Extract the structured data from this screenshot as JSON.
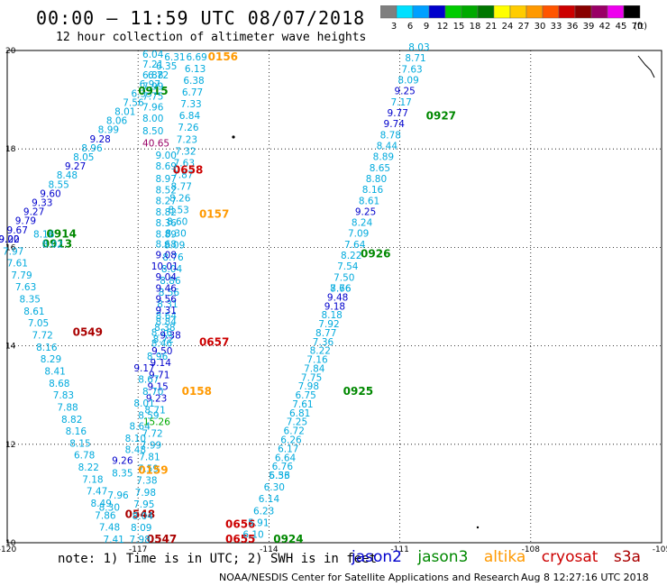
{
  "title": "00:00 — 11:59 UTC 08/07/2018",
  "subtitle": "12 hour collection of altimeter wave heights",
  "note": "note: 1) Time is in UTC; 2) SWH is in feet",
  "credit": "NOAA/NESDIS Center for Satellite Applications and Research",
  "timestamp": "Aug  8 12:27:16 UTC 2018",
  "colorbar": {
    "labels": [
      "3",
      "6",
      "9",
      "12",
      "15",
      "18",
      "21",
      "24",
      "27",
      "30",
      "33",
      "36",
      "39",
      "42",
      "45",
      "70"
    ],
    "unit": "(ft)",
    "colors": [
      "#7f7f7f",
      "#00e0ff",
      "#00a0ff",
      "#0000cc",
      "#00cc00",
      "#00aa00",
      "#007700",
      "#ffff00",
      "#ffcc00",
      "#ff9900",
      "#ff5500",
      "#cc0000",
      "#880000",
      "#990066",
      "#ee00ee",
      "#000000"
    ]
  },
  "legend": [
    {
      "name": "jason2",
      "color": "#0000cc"
    },
    {
      "name": "jason3",
      "color": "#008800"
    },
    {
      "name": "altika",
      "color": "#ff9900"
    },
    {
      "name": "cryosat",
      "color": "#cc0000"
    },
    {
      "name": "s3a",
      "color": "#aa0000"
    }
  ],
  "chart_data": {
    "type": "scatter",
    "xlim": [
      -120,
      -105
    ],
    "ylim": [
      10,
      20
    ],
    "x_ticks": [
      "-120",
      "-117",
      "-114",
      "-111",
      "-108",
      "-105"
    ],
    "y_ticks": [
      "10",
      "12",
      "14",
      "16",
      "18",
      "20"
    ],
    "grid": true,
    "tracks": [
      {
        "time": "0915",
        "satellite": "jason3",
        "color": "#008800",
        "label_pos": [
          -117.0,
          19.1
        ],
        "start": [
          -116.4,
          19.8
        ],
        "end": [
          -120.2,
          16.1
        ],
        "values": [
          "6.31",
          "6.35",
          "6.72",
          "6.97",
          "6.33",
          "7.56",
          "8.01",
          "8.06",
          "8.99",
          "9.28",
          "8.96",
          "8.05",
          "9.27",
          "8.48",
          "8.55",
          "9.60",
          "9.33",
          "9.27",
          "9.79",
          "9.67",
          "9.20"
        ]
      },
      {
        "time": "0914",
        "satellite": "jason3",
        "color": "#008800",
        "label_pos": [
          -119.1,
          16.2
        ],
        "values": []
      },
      {
        "time": "0913",
        "satellite": "jason3",
        "color": "#008800",
        "label_pos": [
          -119.2,
          16.0
        ],
        "values": []
      },
      {
        "time": "0549",
        "satellite": "s3a",
        "color": "#aa0000",
        "label_pos": [
          -118.5,
          14.2
        ],
        "start": [
          -120.2,
          16.1
        ],
        "end": [
          -117.8,
          10.0
        ],
        "values": [
          "9.02",
          "7.97",
          "7.61",
          "7.79",
          "7.63",
          "8.35",
          "8.61",
          "7.05",
          "7.72",
          "8.16",
          "8.29",
          "8.41",
          "8.68",
          "7.83",
          "7.88",
          "8.82",
          "8.16",
          "8.15",
          "6.78",
          "8.22",
          "7.18",
          "7.47",
          "8.49",
          "7.86",
          "7.48",
          "7.41"
        ]
      },
      {
        "time": "0548",
        "satellite": "s3a",
        "color": "#aa0000",
        "label_pos": [
          -117.3,
          10.5
        ],
        "values": []
      },
      {
        "time": "0547",
        "satellite": "s3a",
        "color": "#aa0000",
        "label_pos": [
          -116.8,
          10.0
        ],
        "values": []
      },
      {
        "time": "0156",
        "satellite": "altika",
        "color": "#ff9900",
        "label_pos": [
          -115.4,
          19.8
        ],
        "start": [
          -115.9,
          19.8
        ],
        "end": [
          -117.2,
          10.0
        ],
        "values": [
          "6.69",
          "6.13",
          "6.38",
          "6.77",
          "7.33",
          "6.84",
          "7.26",
          "7.23",
          "7.32",
          "7.63",
          "7.87",
          "8.77",
          "8.26",
          "8.53",
          "8.60",
          "8.30",
          "8.09",
          "8.76",
          "8.04",
          "8.86",
          "8.56",
          "8.31",
          "8.64",
          "8.38",
          "8.72",
          "9.50",
          "9.14",
          "9.71",
          "9.15",
          "9.23",
          "8.71",
          "15.26",
          "7.72",
          "7.99",
          "7.81",
          "7.59",
          "7.38",
          "7.98",
          "7.95",
          "8.04",
          "8.09",
          "7.98"
        ]
      },
      {
        "time": "0157",
        "satellite": "altika",
        "color": "#ff9900",
        "label_pos": [
          -115.6,
          16.6
        ],
        "values": []
      },
      {
        "time": "0158",
        "satellite": "altika",
        "color": "#ff9900",
        "label_pos": [
          -116.0,
          13.0
        ],
        "values": []
      },
      {
        "time": "0159",
        "satellite": "altika",
        "color": "#ff9900",
        "label_pos": [
          -117.0,
          11.4
        ],
        "values": []
      },
      {
        "time": "0658",
        "satellite": "cryosat",
        "color": "#cc0000",
        "label_pos": [
          -116.2,
          17.5
        ],
        "values": []
      },
      {
        "time": "0657",
        "satellite": "cryosat",
        "color": "#cc0000",
        "label_pos": [
          -115.6,
          14.0
        ],
        "values": []
      },
      {
        "time": "0656",
        "satellite": "cryosat",
        "color": "#cc0000",
        "label_pos": [
          -115.0,
          10.3
        ],
        "values": []
      },
      {
        "time": "0655",
        "satellite": "cryosat",
        "color": "#cc0000",
        "label_pos": [
          -115.0,
          10.0
        ],
        "values": []
      },
      {
        "time": "0927",
        "satellite": "jason3",
        "color": "#008800",
        "label_pos": [
          -110.4,
          18.6
        ],
        "start": [
          -110.8,
          20.0
        ],
        "end": [
          -112.6,
          15.1
        ],
        "values": [
          "8.03",
          "8.71",
          "7.63",
          "8.09",
          "9.25",
          "7.17",
          "9.77",
          "9.74",
          "8.78",
          "8.44",
          "8.89",
          "8.65",
          "8.80",
          "8.16",
          "8.61",
          "9.25",
          "8.24",
          "7.09",
          "7.64",
          "8.22",
          "7.54",
          "7.50",
          "8.66"
        ]
      },
      {
        "time": "0926",
        "satellite": "jason3",
        "color": "#008800",
        "label_pos": [
          -111.9,
          15.8
        ],
        "start": [
          -112.6,
          15.1
        ],
        "end": [
          -114.0,
          11.3
        ],
        "values": [
          "7.76",
          "9.48",
          "9.18",
          "8.18",
          "7.92",
          "8.77",
          "7.36",
          "8.22",
          "7.16",
          "7.84",
          "7.75",
          "7.98",
          "6.75",
          "7.61",
          "6.81",
          "7.25",
          "6.72",
          "6.26",
          "6.17",
          "6.64",
          "6.76",
          "6.56"
        ]
      },
      {
        "time": "0925",
        "satellite": "jason3",
        "color": "#008800",
        "label_pos": [
          -112.3,
          13.0
        ],
        "values": []
      },
      {
        "time": "0924",
        "satellite": "jason3",
        "color": "#008800",
        "label_pos": [
          -113.9,
          10.0
        ],
        "start": [
          -114.0,
          11.3
        ],
        "end": [
          -114.6,
          10.1
        ],
        "values": [
          "5.33",
          "6.30",
          "6.14",
          "6.23",
          "5.91",
          "6.10"
        ]
      }
    ],
    "extra_labels": [
      {
        "text": "8.50",
        "x": -116.9,
        "y": 18.3,
        "color": "#00aadd"
      },
      {
        "text": "40.65",
        "x": -116.9,
        "y": 18.05,
        "color": "#990066"
      },
      {
        "text": "8.00",
        "x": -116.9,
        "y": 18.55,
        "color": "#00aadd"
      },
      {
        "text": "7.96",
        "x": -116.9,
        "y": 18.78,
        "color": "#00aadd"
      },
      {
        "text": "7.75",
        "x": -116.9,
        "y": 19.0,
        "color": "#00aadd"
      },
      {
        "text": "7.99",
        "x": -116.9,
        "y": 19.2,
        "color": "#00aadd"
      },
      {
        "text": "6.88",
        "x": -116.9,
        "y": 19.43,
        "color": "#00aadd"
      },
      {
        "text": "7.21",
        "x": -116.9,
        "y": 19.65,
        "color": "#00aadd"
      },
      {
        "text": "6.04",
        "x": -116.9,
        "y": 19.85,
        "color": "#00aadd"
      },
      {
        "text": "9.00",
        "x": -116.6,
        "y": 17.8,
        "color": "#00aadd"
      },
      {
        "text": "8.69",
        "x": -116.6,
        "y": 17.58,
        "color": "#00aadd"
      },
      {
        "text": "8.97",
        "x": -116.6,
        "y": 17.33,
        "color": "#00aadd"
      },
      {
        "text": "8.52",
        "x": -116.6,
        "y": 17.1,
        "color": "#00aadd"
      },
      {
        "text": "8.27",
        "x": -116.6,
        "y": 16.88,
        "color": "#00aadd"
      },
      {
        "text": "8.82",
        "x": -116.6,
        "y": 16.65,
        "color": "#00aadd"
      },
      {
        "text": "8.36",
        "x": -116.6,
        "y": 16.43,
        "color": "#00aadd"
      },
      {
        "text": "8.89",
        "x": -116.6,
        "y": 16.2,
        "color": "#00aadd"
      },
      {
        "text": "8.68",
        "x": -116.6,
        "y": 16.0,
        "color": "#00aadd"
      },
      {
        "text": "9.08",
        "x": -116.6,
        "y": 15.78,
        "color": "#0000cc"
      },
      {
        "text": "10.01",
        "x": -116.7,
        "y": 15.55,
        "color": "#0000cc"
      },
      {
        "text": "9.04",
        "x": -116.6,
        "y": 15.33,
        "color": "#0000cc"
      },
      {
        "text": "9.46",
        "x": -116.6,
        "y": 15.1,
        "color": "#0000cc"
      },
      {
        "text": "9.56",
        "x": -116.6,
        "y": 14.88,
        "color": "#0000cc"
      },
      {
        "text": "9.31",
        "x": -116.6,
        "y": 14.65,
        "color": "#0000cc"
      },
      {
        "text": "8.84",
        "x": -116.6,
        "y": 14.42,
        "color": "#00aadd"
      },
      {
        "text": "8.26",
        "x": -116.7,
        "y": 14.2,
        "color": "#00aadd"
      },
      {
        "text": "8.46",
        "x": -116.7,
        "y": 13.98,
        "color": "#00aadd"
      },
      {
        "text": "8.96",
        "x": -116.8,
        "y": 13.72,
        "color": "#00aadd"
      },
      {
        "text": "9.17",
        "x": -117.1,
        "y": 13.48,
        "color": "#0000cc"
      },
      {
        "text": "8.67",
        "x": -117.0,
        "y": 13.25,
        "color": "#00aadd"
      },
      {
        "text": "8.70",
        "x": -116.9,
        "y": 13.0,
        "color": "#00aadd"
      },
      {
        "text": "8.01",
        "x": -117.1,
        "y": 12.77,
        "color": "#00aadd"
      },
      {
        "text": "8.59",
        "x": -117.0,
        "y": 12.52,
        "color": "#00aadd"
      },
      {
        "text": "8.64",
        "x": -117.2,
        "y": 12.3,
        "color": "#00aadd"
      },
      {
        "text": "8.10",
        "x": -117.3,
        "y": 12.05,
        "color": "#00aadd"
      },
      {
        "text": "8.48",
        "x": -117.3,
        "y": 11.82,
        "color": "#00aadd"
      },
      {
        "text": "9.26",
        "x": -117.6,
        "y": 11.6,
        "color": "#0000cc"
      },
      {
        "text": "8.35",
        "x": -117.6,
        "y": 11.35,
        "color": "#00aadd"
      },
      {
        "text": "7.96",
        "x": -117.7,
        "y": 10.9,
        "color": "#00aadd"
      },
      {
        "text": "8.30",
        "x": -117.9,
        "y": 10.65,
        "color": "#00aadd"
      },
      {
        "text": "8.16",
        "x": -119.4,
        "y": 16.2,
        "color": "#00aadd"
      },
      {
        "text": "8.02",
        "x": -119.2,
        "y": 16.0,
        "color": "#00aadd"
      },
      {
        "text": "9.38",
        "x": -116.5,
        "y": 14.15,
        "color": "#0000cc"
      }
    ]
  }
}
